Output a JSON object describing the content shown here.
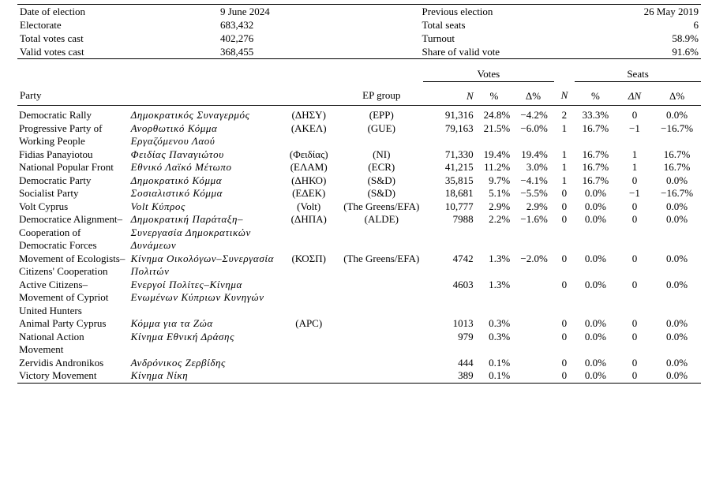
{
  "summary": {
    "rows": [
      [
        "Date of election",
        "9 June 2024",
        "Previous election",
        "26 May 2019"
      ],
      [
        "Electorate",
        "683,432",
        "Total seats",
        "6"
      ],
      [
        "Total votes cast",
        "402,276",
        "Turnout",
        "58.9%"
      ],
      [
        "Valid votes cast",
        "368,455",
        "Share of valid vote",
        "91.6%"
      ]
    ]
  },
  "table": {
    "groups": [
      "Votes",
      "Seats"
    ],
    "columns": [
      "Party",
      "EP group",
      "N",
      "%",
      "Δ%",
      "N",
      "%",
      "ΔN",
      "Δ%"
    ],
    "rows": [
      [
        "Democratic Rally",
        "Δημοκρατικός Συναγερμός",
        "(ΔΗΣΥ)",
        "(EPP)",
        "91,316",
        "24.8%",
        "−4.2%",
        "2",
        "33.3%",
        "0",
        "0.0%"
      ],
      [
        "Progressive Party of Working People",
        "Ανορθωτικό Κόμμα Εργαζόμενου Λαού",
        "(ΑΚΕΛ)",
        "(GUE)",
        "79,163",
        "21.5%",
        "−6.0%",
        "1",
        "16.7%",
        "−1",
        "−16.7%"
      ],
      [
        "Fidias Panayiotou",
        "Φειδίας Παναγιώτου",
        "(Φειδίας)",
        "(NI)",
        "71,330",
        "19.4%",
        "19.4%",
        "1",
        "16.7%",
        "1",
        "16.7%"
      ],
      [
        "National Popular Front",
        "Εθνικό Λαϊκό Μέτωπο",
        "(ΕΛΑΜ)",
        "(ECR)",
        "41,215",
        "11.2%",
        "3.0%",
        "1",
        "16.7%",
        "1",
        "16.7%"
      ],
      [
        "Democratic Party",
        "Δημοκρατικό Κόμμα",
        "(ΔΗΚΟ)",
        "(S&D)",
        "35,815",
        "9.7%",
        "−4.1%",
        "1",
        "16.7%",
        "0",
        "0.0%"
      ],
      [
        "Socialist Party",
        "Σοσιαλιστικό Κόμμα",
        "(ΕΔΕΚ)",
        "(S&D)",
        "18,681",
        "5.1%",
        "−5.5%",
        "0",
        "0.0%",
        "−1",
        "−16.7%"
      ],
      [
        "Volt Cyprus",
        "Volt Κύπρος",
        "(Volt)",
        "(The Greens/EFA)",
        "10,777",
        "2.9%",
        "2.9%",
        "0",
        "0.0%",
        "0",
        "0.0%"
      ],
      [
        "Democratice Alignment–Cooperation of Democratic Forces",
        "Δημοκρατική Παράταξη–Συνεργασία Δημοκρατικών Δυνάμεων",
        "(ΔΗΠΑ)",
        "(ALDE)",
        "7988",
        "2.2%",
        "−1.6%",
        "0",
        "0.0%",
        "0",
        "0.0%"
      ],
      [
        "Movement of Ecologists–Citizens' Cooperation",
        "Κίνημα Οικολόγων–Συνεργασία Πολιτών",
        "(ΚΟΣΠ)",
        "(The Greens/EFA)",
        "4742",
        "1.3%",
        "−2.0%",
        "0",
        "0.0%",
        "0",
        "0.0%"
      ],
      [
        "Active Citizens–Movement of Cypriot United Hunters",
        "Ενεργοί Πολίτες–Κίνημα Ενωμένων Κύπριων Κυνηγών",
        null,
        null,
        "4603",
        "1.3%",
        null,
        "0",
        "0.0%",
        "0",
        "0.0%"
      ],
      [
        "Animal Party Cyprus",
        "Κόμμα για τα Ζώα",
        "(APC)",
        null,
        "1013",
        "0.3%",
        null,
        "0",
        "0.0%",
        "0",
        "0.0%"
      ],
      [
        "National Action Movement",
        "Κίνημα Εθνική Δράσης",
        null,
        null,
        "979",
        "0.3%",
        null,
        "0",
        "0.0%",
        "0",
        "0.0%"
      ],
      [
        "Zervidis Andronikos",
        "Ανδρόνικος Ζερβίδης",
        null,
        null,
        "444",
        "0.1%",
        null,
        "0",
        "0.0%",
        "0",
        "0.0%"
      ],
      [
        "Victory Movement",
        "Κίνημα Νίκη",
        null,
        null,
        "389",
        "0.1%",
        null,
        "0",
        "0.0%",
        "0",
        "0.0%"
      ]
    ]
  }
}
